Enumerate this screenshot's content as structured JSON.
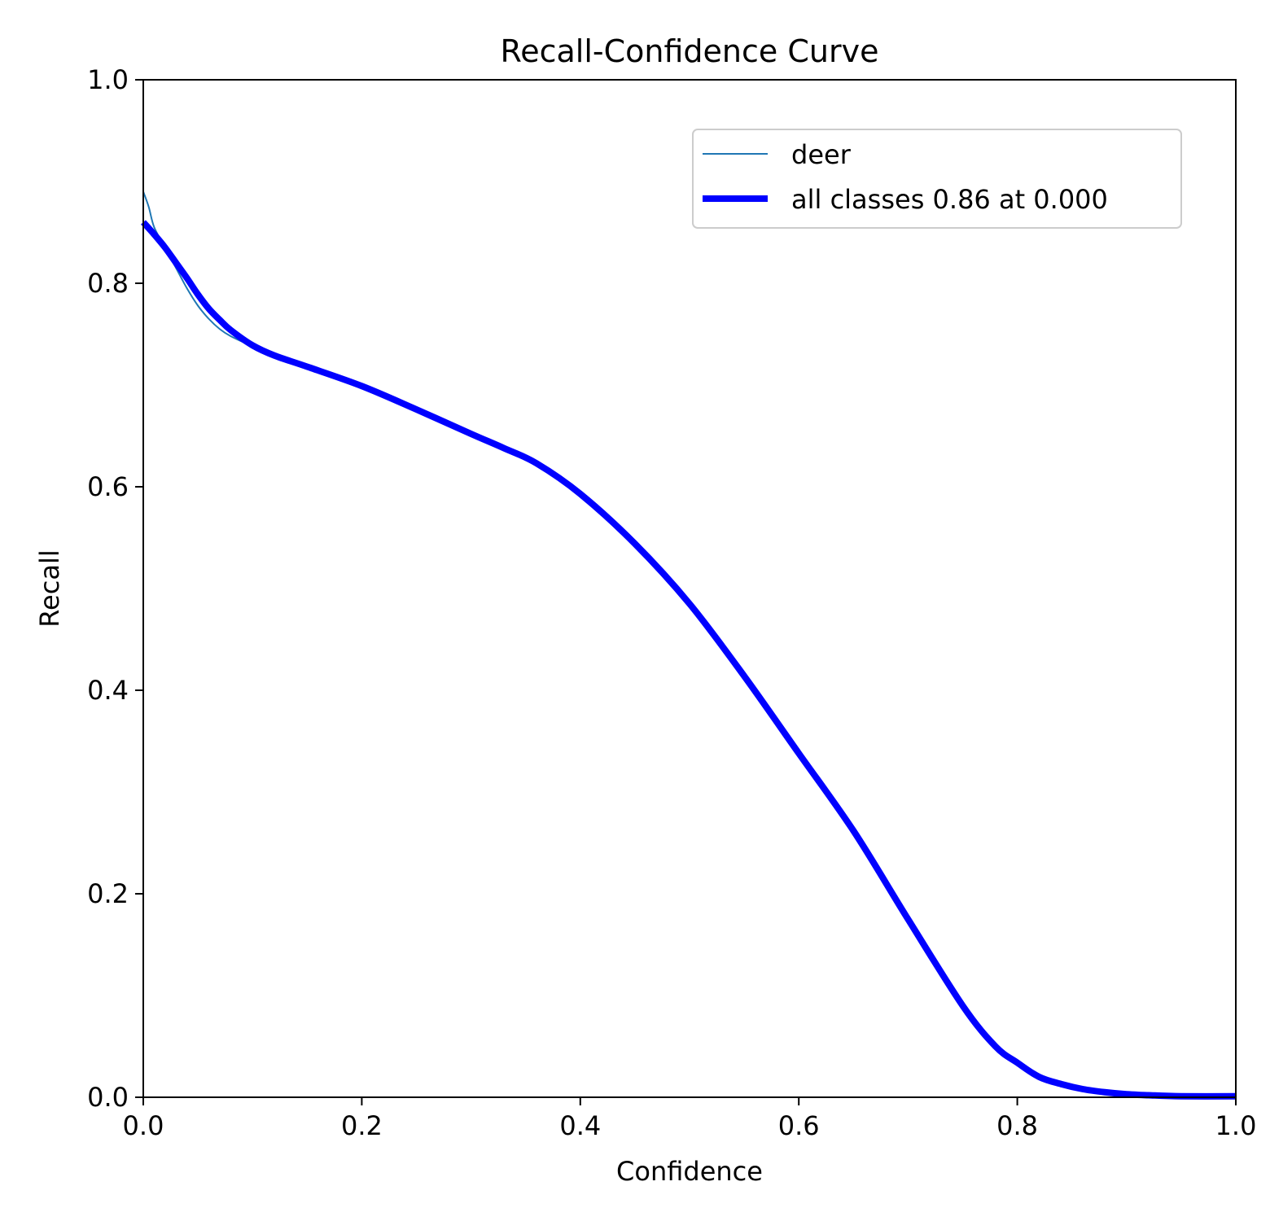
{
  "chart_data": {
    "type": "line",
    "title": "Recall-Confidence Curve",
    "xlabel": "Confidence",
    "ylabel": "Recall",
    "xlim": [
      0,
      1
    ],
    "ylim": [
      0,
      1
    ],
    "xticks": [
      "0.0",
      "0.2",
      "0.4",
      "0.6",
      "0.8",
      "1.0"
    ],
    "yticks": [
      "0.0",
      "0.2",
      "0.4",
      "0.6",
      "0.8",
      "1.0"
    ],
    "grid": false,
    "legend_position": "top-right",
    "series": [
      {
        "name": "deer",
        "color": "#1f77b4",
        "style": "thin",
        "x": [
          0.0,
          0.005,
          0.01,
          0.02,
          0.03,
          0.04,
          0.05,
          0.06,
          0.07,
          0.08,
          0.1,
          0.12,
          0.15,
          0.2,
          0.25,
          0.3,
          0.33,
          0.36,
          0.4,
          0.45,
          0.5,
          0.55,
          0.6,
          0.65,
          0.7,
          0.75,
          0.78,
          0.8,
          0.82,
          0.84,
          0.86,
          0.88,
          0.9,
          0.92,
          0.95,
          1.0
        ],
        "y": [
          0.89,
          0.875,
          0.855,
          0.835,
          0.815,
          0.795,
          0.778,
          0.765,
          0.755,
          0.748,
          0.738,
          0.729,
          0.718,
          0.699,
          0.676,
          0.652,
          0.638,
          0.625,
          0.593,
          0.544,
          0.485,
          0.415,
          0.338,
          0.262,
          0.175,
          0.088,
          0.048,
          0.032,
          0.018,
          0.012,
          0.008,
          0.005,
          0.003,
          0.002,
          0.001,
          0.001
        ]
      },
      {
        "name": "all classes 0.86 at 0.000",
        "color": "#0000ff",
        "style": "thick",
        "x": [
          0.0,
          0.01,
          0.02,
          0.03,
          0.04,
          0.05,
          0.06,
          0.07,
          0.08,
          0.1,
          0.12,
          0.15,
          0.2,
          0.25,
          0.3,
          0.33,
          0.36,
          0.4,
          0.45,
          0.5,
          0.55,
          0.6,
          0.65,
          0.7,
          0.75,
          0.78,
          0.8,
          0.82,
          0.84,
          0.86,
          0.88,
          0.9,
          0.92,
          0.95,
          1.0
        ],
        "y": [
          0.86,
          0.848,
          0.835,
          0.82,
          0.805,
          0.789,
          0.775,
          0.764,
          0.754,
          0.739,
          0.729,
          0.718,
          0.699,
          0.676,
          0.652,
          0.638,
          0.623,
          0.593,
          0.544,
          0.485,
          0.414,
          0.338,
          0.262,
          0.175,
          0.09,
          0.05,
          0.034,
          0.02,
          0.013,
          0.008,
          0.005,
          0.003,
          0.002,
          0.001,
          0.001
        ]
      }
    ]
  }
}
